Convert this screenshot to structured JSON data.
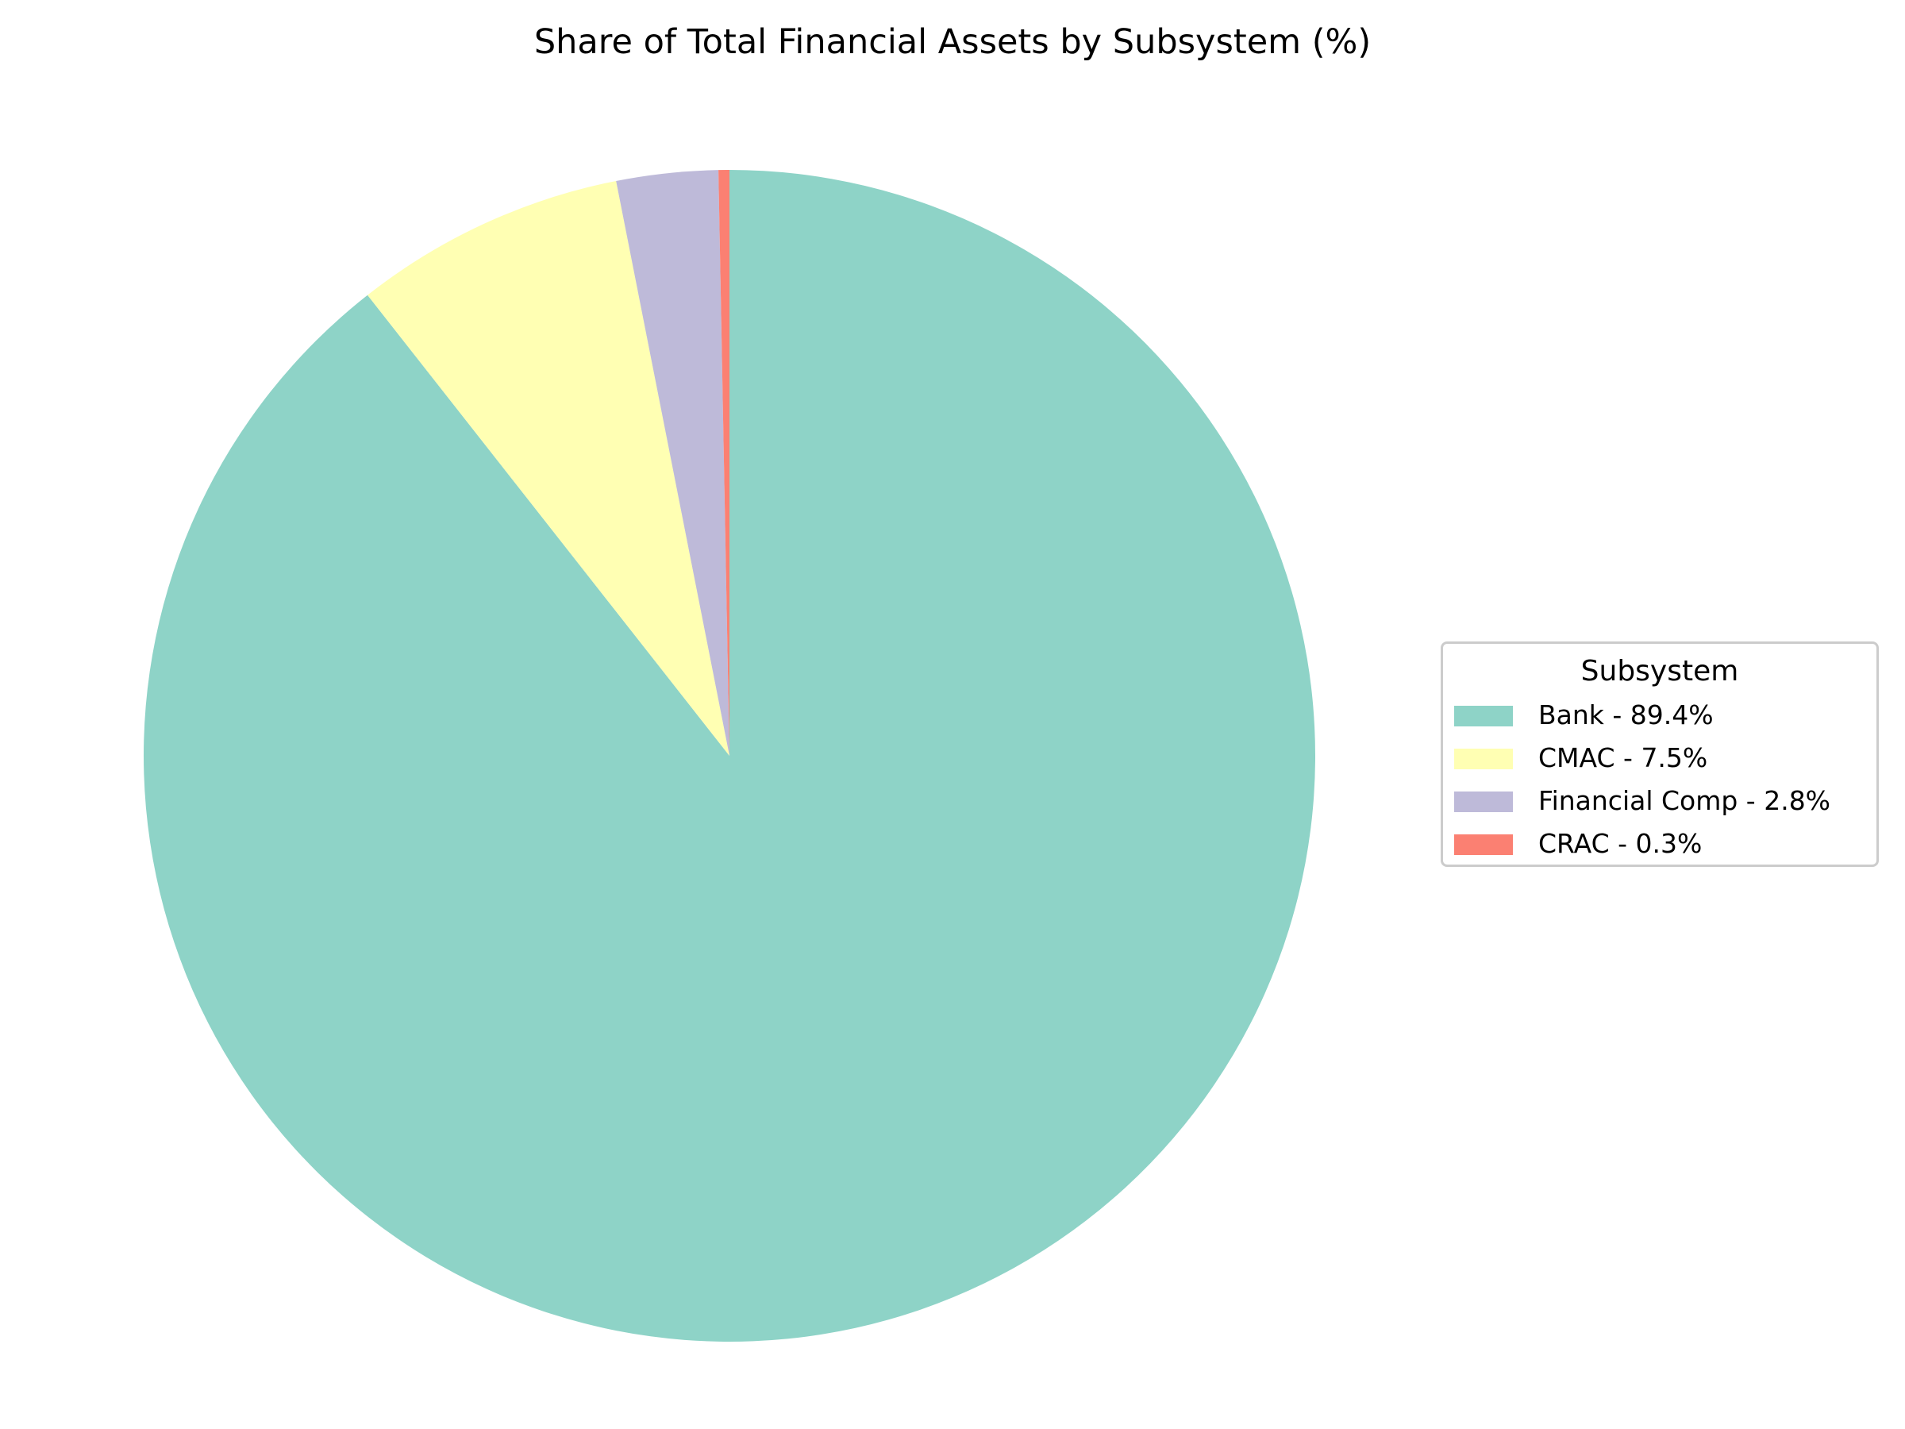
{
  "chart_data": {
    "type": "pie",
    "title": "Share of Total Financial Assets by Subsystem (%)",
    "legend_title": "Subsystem",
    "legend_position": "center-right",
    "start_angle_deg": 90,
    "direction": "clockwise",
    "slices": [
      {
        "label": "Bank - 89.4%",
        "value": 89.4,
        "color": "#8ED3C7"
      },
      {
        "label": "CMAC - 7.5%",
        "value": 7.5,
        "color": "#FFFFB3"
      },
      {
        "label": "Financial Comp - 2.8%",
        "value": 2.8,
        "color": "#BEBAD9"
      },
      {
        "label": "CRAC - 0.3%",
        "value": 0.3,
        "color": "#FB8072"
      }
    ]
  }
}
